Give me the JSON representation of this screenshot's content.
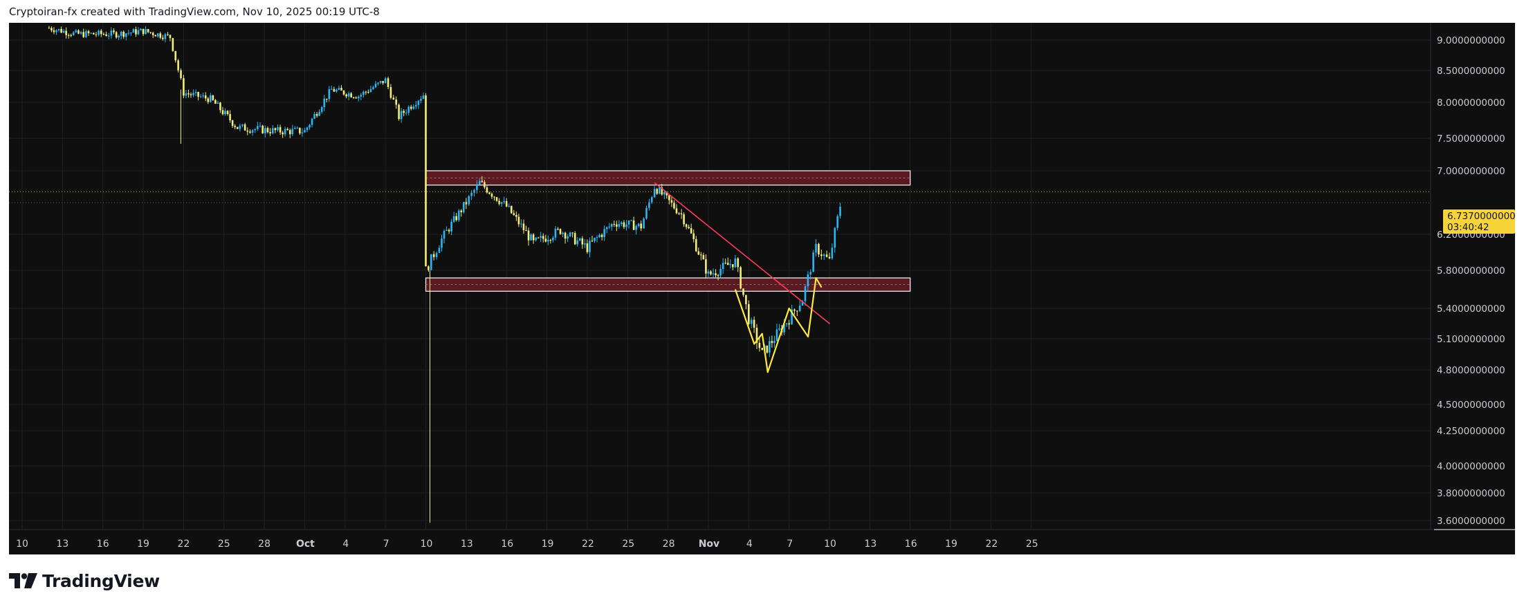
{
  "header": {
    "text": "Cryptoiran-fx created with TradingView.com, Nov 10, 2025 00:19 UTC-8"
  },
  "footer": {
    "brand": "TradingView",
    "logo_icon": "tradingview-logo-icon"
  },
  "colors": {
    "background": "#0f0f0f",
    "up_candle": "#29b6f6",
    "down_candle": "#f5ef7a",
    "zone_fill": "#5a1a22",
    "zone_border": "#ffffff",
    "trendline": "#ff3b5c",
    "pattern": "#ffeb3b",
    "badge": "#f7d53a",
    "axis_text": "#c9ccd3"
  },
  "chart_data": {
    "type": "candlestick",
    "title": "",
    "price_axis": {
      "ticks": [
        "9.0000000000",
        "8.5000000000",
        "8.0000000000",
        "7.5000000000",
        "7.0000000000",
        "6.2000000000",
        "5.8000000000",
        "5.4000000000",
        "5.1000000000",
        "4.8000000000",
        "4.5000000000",
        "4.2500000000",
        "4.0000000000",
        "3.8000000000",
        "3.6000000000"
      ]
    },
    "time_axis": {
      "ticks": [
        {
          "label": "10",
          "bold": false
        },
        {
          "label": "13",
          "bold": false
        },
        {
          "label": "16",
          "bold": false
        },
        {
          "label": "19",
          "bold": false
        },
        {
          "label": "22",
          "bold": false
        },
        {
          "label": "25",
          "bold": false
        },
        {
          "label": "28",
          "bold": false
        },
        {
          "label": "Oct",
          "bold": true
        },
        {
          "label": "4",
          "bold": false
        },
        {
          "label": "7",
          "bold": false
        },
        {
          "label": "10",
          "bold": false
        },
        {
          "label": "13",
          "bold": false
        },
        {
          "label": "16",
          "bold": false
        },
        {
          "label": "19",
          "bold": false
        },
        {
          "label": "22",
          "bold": false
        },
        {
          "label": "25",
          "bold": false
        },
        {
          "label": "28",
          "bold": false
        },
        {
          "label": "Nov",
          "bold": true
        },
        {
          "label": "4",
          "bold": false
        },
        {
          "label": "7",
          "bold": false
        },
        {
          "label": "10",
          "bold": false
        },
        {
          "label": "13",
          "bold": false
        },
        {
          "label": "16",
          "bold": false
        },
        {
          "label": "19",
          "bold": false
        },
        {
          "label": "22",
          "bold": false
        },
        {
          "label": "25",
          "bold": false
        }
      ]
    },
    "series": [
      {
        "name": "",
        "approx_close_path": [
          [
            "2025-09-12",
            9.2
          ],
          [
            "2025-09-14",
            9.1
          ],
          [
            "2025-09-17",
            9.1
          ],
          [
            "2025-09-19",
            9.15
          ],
          [
            "2025-09-21",
            9.05
          ],
          [
            "2025-09-22",
            8.15
          ],
          [
            "2025-09-24",
            8.05
          ],
          [
            "2025-09-26",
            7.65
          ],
          [
            "2025-09-29",
            7.6
          ],
          [
            "2025-10-01",
            7.6
          ],
          [
            "2025-10-03",
            8.2
          ],
          [
            "2025-10-05",
            8.1
          ],
          [
            "2025-10-07",
            8.35
          ],
          [
            "2025-10-08",
            7.8
          ],
          [
            "2025-10-10",
            8.15
          ],
          [
            "2025-10-10",
            5.8
          ],
          [
            "2025-10-11",
            6.1
          ],
          [
            "2025-10-13",
            6.6
          ],
          [
            "2025-10-14",
            6.85
          ],
          [
            "2025-10-16",
            6.55
          ],
          [
            "2025-10-18",
            6.1
          ],
          [
            "2025-10-20",
            6.25
          ],
          [
            "2025-10-22",
            6.05
          ],
          [
            "2025-10-24",
            6.35
          ],
          [
            "2025-10-26",
            6.3
          ],
          [
            "2025-10-27",
            6.8
          ],
          [
            "2025-10-29",
            6.45
          ],
          [
            "2025-10-31",
            5.75
          ],
          [
            "2025-11-02",
            5.9
          ],
          [
            "2025-11-03",
            5.3
          ],
          [
            "2025-11-04",
            4.95
          ],
          [
            "2025-11-06",
            5.3
          ],
          [
            "2025-11-07",
            5.5
          ],
          [
            "2025-11-08",
            6.05
          ],
          [
            "2025-11-09",
            5.9
          ],
          [
            "2025-11-10",
            6.73
          ]
        ]
      }
    ],
    "annotations": {
      "resistance_zone": {
        "low": 6.82,
        "high": 7.0,
        "from": "2025-10-10",
        "to": "2025-11-15"
      },
      "support_zone": {
        "low": 5.58,
        "high": 5.72,
        "from": "2025-10-10",
        "to": "2025-11-15"
      },
      "descending_trendline": {
        "from": [
          "2025-10-27",
          6.85
        ],
        "to": [
          "2025-11-08",
          5.35
        ]
      },
      "yellow_pattern": [
        [
          "2025-11-02",
          5.6
        ],
        [
          "2025-11-03",
          5.05
        ],
        [
          "2025-11-04",
          5.15
        ],
        [
          "2025-11-04",
          4.78
        ],
        [
          "2025-11-06",
          5.4
        ],
        [
          "2025-11-07",
          5.12
        ],
        [
          "2025-11-08",
          5.72
        ],
        [
          "2025-11-08",
          5.62
        ]
      ]
    },
    "last_price": {
      "value": "6.7370000000",
      "countdown": "03:40:42"
    },
    "grid": true
  }
}
